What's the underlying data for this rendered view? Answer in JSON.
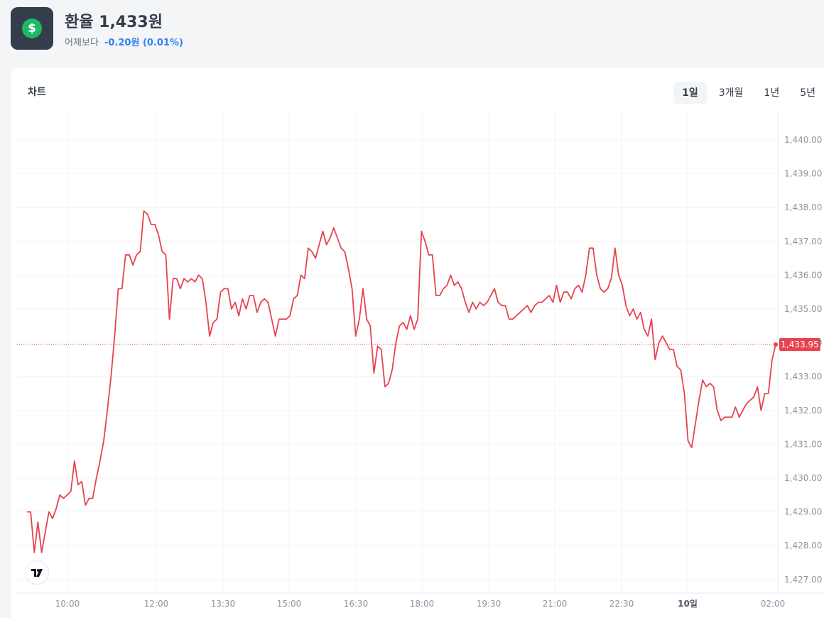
{
  "header": {
    "title": "환율 1,433원",
    "subtitle_label": "어제보다",
    "change": "-0.20원 (0.01%)",
    "icon": "dollar-coin-icon",
    "icon_symbol": "$"
  },
  "card": {
    "title": "차트",
    "ranges": [
      {
        "label": "1일",
        "active": true
      },
      {
        "label": "3개월",
        "active": false
      },
      {
        "label": "1년",
        "active": false
      },
      {
        "label": "5년",
        "active": false
      }
    ]
  },
  "colors": {
    "line": "#e8424f",
    "change": "#3182f6",
    "icon_bg": "#333d4b",
    "coin": "#1db865"
  },
  "chart_data": {
    "type": "line",
    "ylim": [
      1426.8,
      1440.6
    ],
    "y_ticks": [
      "1,427.00",
      "1,428.00",
      "1,429.00",
      "1,430.00",
      "1,431.00",
      "1,432.00",
      "1,433.00",
      "1,434.00",
      "1,435.00",
      "1,436.00",
      "1,437.00",
      "1,438.00",
      "1,439.00",
      "1,440.00"
    ],
    "x_ticks": [
      "10:00",
      "12:00",
      "13:30",
      "15:00",
      "16:30",
      "18:00",
      "19:30",
      "21:00",
      "22:30",
      "10일",
      "02:00"
    ],
    "current_value": 1433.95,
    "current_label": "1,433.95",
    "grid": true,
    "series": [
      {
        "values": [
          1429.0,
          1429.0,
          1427.8,
          1428.7,
          1427.8,
          1428.4,
          1429.0,
          1428.8,
          1429.1,
          1429.5,
          1429.4,
          1429.5,
          1429.6,
          1430.5,
          1429.8,
          1429.9,
          1429.2,
          1429.4,
          1429.4,
          1430.0,
          1430.5,
          1431.1,
          1432.0,
          1433.0,
          1434.2,
          1435.6,
          1435.6,
          1436.6,
          1436.6,
          1436.3,
          1436.6,
          1436.7,
          1437.9,
          1437.8,
          1437.5,
          1437.5,
          1437.2,
          1436.7,
          1436.6,
          1434.7,
          1435.9,
          1435.9,
          1435.6,
          1435.9,
          1435.8,
          1435.9,
          1435.8,
          1436.0,
          1435.9,
          1435.2,
          1434.2,
          1434.6,
          1434.7,
          1435.5,
          1435.6,
          1435.6,
          1435.0,
          1435.2,
          1434.8,
          1435.3,
          1435.0,
          1435.4,
          1435.4,
          1434.9,
          1435.2,
          1435.3,
          1435.2,
          1434.7,
          1434.2,
          1434.7,
          1434.7,
          1434.7,
          1434.8,
          1435.3,
          1435.4,
          1436.0,
          1435.9,
          1436.8,
          1436.7,
          1436.5,
          1436.9,
          1437.3,
          1436.9,
          1437.1,
          1437.4,
          1437.1,
          1436.8,
          1436.7,
          1436.2,
          1435.6,
          1434.2,
          1434.7,
          1435.6,
          1434.7,
          1434.5,
          1433.1,
          1433.9,
          1433.8,
          1432.7,
          1432.8,
          1433.2,
          1434.0,
          1434.5,
          1434.6,
          1434.4,
          1434.8,
          1434.4,
          1434.7,
          1437.3,
          1437.0,
          1436.6,
          1436.6,
          1435.4,
          1435.4,
          1435.6,
          1435.7,
          1436.0,
          1435.7,
          1435.8,
          1435.6,
          1435.2,
          1434.9,
          1435.2,
          1435.0,
          1435.2,
          1435.1,
          1435.2,
          1435.4,
          1435.6,
          1435.2,
          1435.1,
          1435.1,
          1434.7,
          1434.7,
          1434.8,
          1434.9,
          1435.0,
          1435.1,
          1434.9,
          1435.1,
          1435.2,
          1435.2,
          1435.3,
          1435.4,
          1435.2,
          1435.7,
          1435.2,
          1435.5,
          1435.5,
          1435.3,
          1435.6,
          1435.7,
          1435.5,
          1436.0,
          1436.8,
          1436.8,
          1436.0,
          1435.6,
          1435.5,
          1435.6,
          1435.9,
          1436.8,
          1436.0,
          1435.7,
          1435.1,
          1434.8,
          1435.0,
          1434.7,
          1434.9,
          1434.4,
          1434.2,
          1434.7,
          1433.5,
          1434.0,
          1434.2,
          1434.0,
          1433.8,
          1433.8,
          1433.3,
          1433.2,
          1432.5,
          1431.1,
          1430.9,
          1431.6,
          1432.3,
          1432.9,
          1432.7,
          1432.8,
          1432.7,
          1432.0,
          1431.7,
          1431.8,
          1431.8,
          1431.8,
          1432.1,
          1431.8,
          1432.0,
          1432.2,
          1432.3,
          1432.4,
          1432.7,
          1432.0,
          1432.5,
          1432.5,
          1433.5,
          1433.95
        ]
      }
    ]
  }
}
